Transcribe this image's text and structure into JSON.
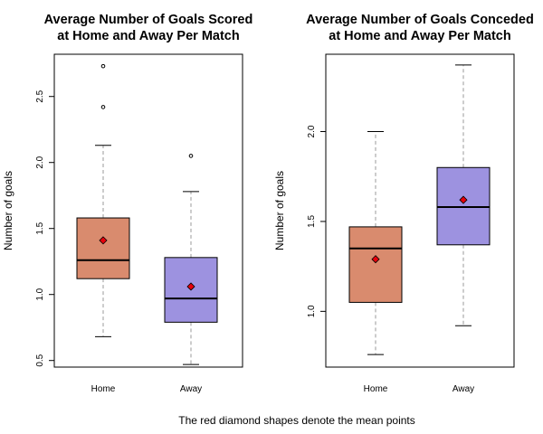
{
  "caption": "The red diamond shapes denote the mean points",
  "colors": {
    "home_fill": "#d98b6e",
    "away_fill": "#9d92e0",
    "mean_marker": "#e8000b",
    "whisker": "#9a9a9a"
  },
  "chart_data": [
    {
      "type": "boxplot",
      "title_lines": [
        "Average Number of Goals Scored",
        "at Home and Away Per Match"
      ],
      "xlabel": "",
      "ylabel": "Number of goals",
      "ylim": [
        0.45,
        2.82
      ],
      "yticks": [
        0.5,
        1.0,
        1.5,
        2.0,
        2.5
      ],
      "ytick_labels": [
        "0.5",
        "1.0",
        "1.5",
        "2.0",
        "2.5"
      ],
      "categories": [
        "Home",
        "Away"
      ],
      "boxes": [
        {
          "name": "Home",
          "whisker_low": 0.68,
          "q1": 1.12,
          "median": 1.26,
          "q3": 1.58,
          "whisker_high": 2.13,
          "mean": 1.41,
          "outliers": [
            2.42,
            2.73
          ]
        },
        {
          "name": "Away",
          "whisker_low": 0.47,
          "q1": 0.79,
          "median": 0.97,
          "q3": 1.28,
          "whisker_high": 1.78,
          "mean": 1.06,
          "outliers": [
            2.05
          ]
        }
      ],
      "grid": false
    },
    {
      "type": "boxplot",
      "title_lines": [
        "Average Number of Goals Conceded",
        "at Home and Away Per Match"
      ],
      "xlabel": "",
      "ylabel": "Number of goals",
      "ylim": [
        0.69,
        2.43
      ],
      "yticks": [
        1.0,
        1.5,
        2.0
      ],
      "ytick_labels": [
        "1.0",
        "1.5",
        "2.0"
      ],
      "categories": [
        "Home",
        "Away"
      ],
      "boxes": [
        {
          "name": "Home",
          "whisker_low": 0.76,
          "q1": 1.05,
          "median": 1.35,
          "q3": 1.47,
          "whisker_high": 2.0,
          "mean": 1.29,
          "outliers": []
        },
        {
          "name": "Away",
          "whisker_low": 0.92,
          "q1": 1.37,
          "median": 1.58,
          "q3": 1.8,
          "whisker_high": 2.37,
          "mean": 1.62,
          "outliers": []
        }
      ],
      "grid": false
    }
  ]
}
